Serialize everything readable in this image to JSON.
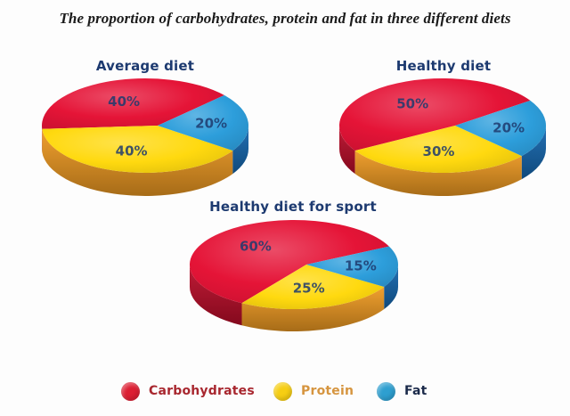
{
  "title": "The proportion of carbohydrates, protein and fat in three different diets",
  "chart_data": [
    {
      "type": "pie",
      "style": "3d",
      "title": "Average diet",
      "categories": [
        "Carbohydrates",
        "Protein",
        "Fat"
      ],
      "values": [
        40,
        40,
        20
      ],
      "labels": [
        "40%",
        "40%",
        "20%"
      ],
      "unit": "%",
      "start_angle": 40,
      "direction": "counterclockwise",
      "legend_position": "shared-bottom"
    },
    {
      "type": "pie",
      "style": "3d",
      "title": "Healthy diet",
      "categories": [
        "Carbohydrates",
        "Protein",
        "Fat"
      ],
      "values": [
        50,
        30,
        20
      ],
      "labels": [
        "50%",
        "30%",
        "20%"
      ],
      "unit": "%",
      "start_angle": 32,
      "direction": "counterclockwise",
      "legend_position": "shared-bottom"
    },
    {
      "type": "pie",
      "style": "3d",
      "title": "Healthy diet for sport",
      "categories": [
        "Carbohydrates",
        "Protein",
        "Fat"
      ],
      "values": [
        60,
        25,
        15
      ],
      "labels": [
        "60%",
        "25%",
        "15%"
      ],
      "unit": "%",
      "start_angle": 24,
      "direction": "counterclockwise",
      "legend_position": "shared-bottom"
    }
  ],
  "palette": {
    "Carbohydrates": {
      "top": "#e51437",
      "side": "#bc0d2a"
    },
    "Protein": {
      "top": "#ffd90f",
      "side": "#ef9a22"
    },
    "Fat": {
      "top": "#2d9edb",
      "side": "#1668b0"
    }
  },
  "slice_label_color": "#1e3a6e",
  "pie_title_color": "#1d3a70",
  "legend": {
    "items": [
      {
        "label": "Carbohydrates",
        "color": "#dc1e32",
        "text_color": "#a8272f"
      },
      {
        "label": "Protein",
        "color": "#f6ce13",
        "text_color": "#d6953f"
      },
      {
        "label": "Fat",
        "color": "#2e9fd0",
        "text_color": "#1b2a4a"
      }
    ]
  }
}
